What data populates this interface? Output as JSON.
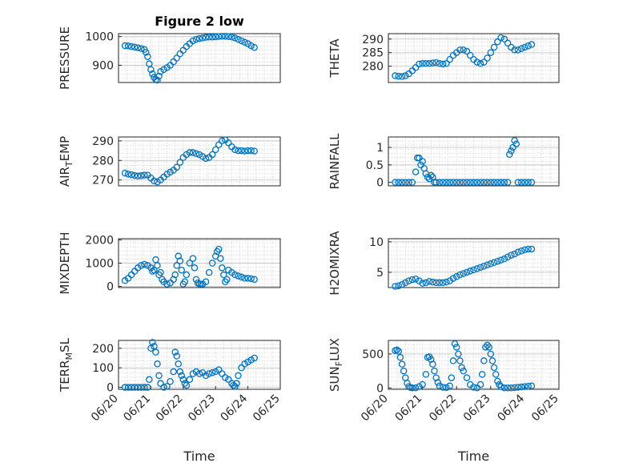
{
  "chart_data": [
    {
      "type": "scatter",
      "title": "Figure 2 low",
      "ylabel": "PRESSURE",
      "xlabel": "",
      "ylim": [
        840,
        1010
      ],
      "yticks": [
        900,
        1000
      ],
      "xlim": [
        0,
        5
      ],
      "xticks": [],
      "x": [
        0.2,
        0.3,
        0.4,
        0.5,
        0.6,
        0.7,
        0.8,
        0.85,
        0.9,
        0.95,
        1.0,
        1.05,
        1.1,
        1.15,
        1.2,
        1.25,
        1.3,
        1.4,
        1.5,
        1.6,
        1.7,
        1.8,
        1.9,
        2.0,
        2.1,
        2.2,
        2.3,
        2.4,
        2.5,
        2.6,
        2.7,
        2.8,
        2.9,
        3.0,
        3.1,
        3.2,
        3.3,
        3.4,
        3.5,
        3.6,
        3.7,
        3.8,
        3.9,
        4.0,
        4.1,
        4.2
      ],
      "y": [
        968,
        967,
        965,
        963,
        961,
        958,
        955,
        945,
        930,
        905,
        885,
        870,
        858,
        850,
        848,
        862,
        878,
        885,
        892,
        900,
        912,
        925,
        940,
        952,
        965,
        975,
        985,
        990,
        993,
        995,
        997,
        998,
        998,
        999,
        1000,
        1001,
        1001,
        1000,
        998,
        995,
        990,
        985,
        980,
        975,
        968,
        962
      ]
    },
    {
      "type": "scatter",
      "title": "",
      "ylabel": "THETA",
      "xlabel": "",
      "ylim": [
        274,
        292
      ],
      "yticks": [
        280,
        285,
        290
      ],
      "xlim": [
        0,
        5
      ],
      "xticks": [],
      "x": [
        0.2,
        0.3,
        0.4,
        0.5,
        0.6,
        0.7,
        0.8,
        0.9,
        1.0,
        1.1,
        1.2,
        1.3,
        1.4,
        1.5,
        1.6,
        1.7,
        1.8,
        1.9,
        2.0,
        2.1,
        2.2,
        2.3,
        2.4,
        2.5,
        2.6,
        2.7,
        2.8,
        2.9,
        3.0,
        3.1,
        3.2,
        3.3,
        3.4,
        3.5,
        3.6,
        3.7,
        3.8,
        3.9,
        4.0,
        4.1,
        4.2
      ],
      "y": [
        276.5,
        276.3,
        276.2,
        276.5,
        277.2,
        278.3,
        279.5,
        280.8,
        281.0,
        281.0,
        281.0,
        281.2,
        281.3,
        281.0,
        280.8,
        281.0,
        282.5,
        284.0,
        285.0,
        286.0,
        286.0,
        285.5,
        284.0,
        282.5,
        281.5,
        281.0,
        281.5,
        283.0,
        285.0,
        287.0,
        289.0,
        290.5,
        290.0,
        288.5,
        287.0,
        286.0,
        286.0,
        286.5,
        287.0,
        287.5,
        288.0
      ]
    },
    {
      "type": "scatter",
      "title": "",
      "ylabel": "AIR_TEMP",
      "xlabel": "",
      "ylim": [
        267,
        292
      ],
      "yticks": [
        270,
        280,
        290
      ],
      "xlim": [
        0,
        5
      ],
      "xticks": [],
      "x": [
        0.2,
        0.3,
        0.4,
        0.5,
        0.6,
        0.7,
        0.8,
        0.9,
        1.0,
        1.1,
        1.2,
        1.3,
        1.4,
        1.5,
        1.6,
        1.7,
        1.8,
        1.9,
        2.0,
        2.1,
        2.2,
        2.3,
        2.4,
        2.5,
        2.6,
        2.7,
        2.8,
        2.9,
        3.0,
        3.1,
        3.2,
        3.3,
        3.4,
        3.5,
        3.6,
        3.7,
        3.8,
        3.9,
        4.0,
        4.1,
        4.2
      ],
      "y": [
        273.5,
        273.0,
        272.7,
        272.3,
        272.0,
        272.2,
        272.5,
        272.5,
        271.0,
        269.5,
        269.0,
        270.0,
        271.5,
        273.0,
        274.0,
        275.0,
        276.5,
        279.0,
        281.5,
        283.0,
        284.0,
        284.0,
        283.5,
        283.0,
        282.0,
        281.0,
        281.5,
        283.0,
        285.5,
        288.0,
        290.0,
        290.5,
        289.0,
        287.0,
        285.5,
        285.0,
        285.0,
        284.8,
        285.0,
        285.0,
        284.8
      ]
    },
    {
      "type": "scatter",
      "title": "",
      "ylabel": "RAINFALL",
      "xlabel": "",
      "ylim": [
        -0.1,
        1.3
      ],
      "yticks": [
        0,
        0.5,
        1
      ],
      "xlim": [
        0,
        5
      ],
      "xticks": [],
      "x": [
        0.2,
        0.3,
        0.4,
        0.5,
        0.6,
        0.7,
        0.8,
        0.85,
        0.9,
        0.95,
        1.0,
        1.05,
        1.1,
        1.15,
        1.2,
        1.25,
        1.3,
        1.35,
        1.4,
        1.5,
        1.6,
        1.7,
        1.8,
        1.9,
        2.0,
        2.1,
        2.2,
        2.3,
        2.4,
        2.5,
        2.6,
        2.7,
        2.8,
        2.9,
        3.0,
        3.1,
        3.2,
        3.3,
        3.4,
        3.5,
        3.55,
        3.6,
        3.65,
        3.7,
        3.75,
        3.8,
        3.9,
        4.0,
        4.1,
        4.2
      ],
      "y": [
        0,
        0,
        0,
        0,
        0,
        0,
        0.3,
        0.7,
        0.7,
        0.5,
        0.6,
        0.4,
        0.25,
        0.15,
        0.1,
        0.2,
        0.15,
        0,
        0,
        0,
        0,
        0,
        0,
        0,
        0,
        0,
        0,
        0,
        0,
        0,
        0,
        0,
        0,
        0,
        0,
        0,
        0,
        0,
        0,
        0,
        0.8,
        0.9,
        1.0,
        1.2,
        1.1,
        0,
        0,
        0,
        0,
        0
      ]
    },
    {
      "type": "scatter",
      "title": "",
      "ylabel": "MIXDEPTH",
      "xlabel": "",
      "ylim": [
        -50,
        2050
      ],
      "yticks": [
        0,
        1000,
        2000
      ],
      "xlim": [
        0,
        5
      ],
      "xticks": [],
      "x": [
        0.2,
        0.3,
        0.4,
        0.5,
        0.6,
        0.7,
        0.8,
        0.9,
        1.0,
        1.05,
        1.1,
        1.15,
        1.2,
        1.25,
        1.3,
        1.35,
        1.4,
        1.5,
        1.6,
        1.7,
        1.75,
        1.8,
        1.85,
        1.9,
        1.95,
        2.0,
        2.05,
        2.1,
        2.2,
        2.3,
        2.35,
        2.4,
        2.45,
        2.5,
        2.55,
        2.6,
        2.7,
        2.8,
        2.9,
        3.0,
        3.05,
        3.1,
        3.15,
        3.2,
        3.25,
        3.3,
        3.35,
        3.4,
        3.5,
        3.6,
        3.7,
        3.8,
        3.9,
        4.0,
        4.1,
        4.2
      ],
      "y": [
        250,
        350,
        500,
        650,
        800,
        900,
        950,
        900,
        800,
        650,
        700,
        1150,
        900,
        500,
        600,
        300,
        200,
        100,
        150,
        300,
        500,
        900,
        1300,
        1100,
        700,
        100,
        200,
        500,
        1000,
        1200,
        800,
        300,
        150,
        100,
        100,
        100,
        200,
        600,
        1000,
        1300,
        1500,
        1600,
        1200,
        800,
        500,
        200,
        300,
        700,
        600,
        500,
        450,
        400,
        350,
        350,
        330,
        300
      ]
    },
    {
      "type": "scatter",
      "title": "",
      "ylabel": "H2OMIXRA",
      "xlabel": "",
      "ylim": [
        2.5,
        10.5
      ],
      "yticks": [
        5,
        10
      ],
      "xlim": [
        0,
        5
      ],
      "xticks": [],
      "x": [
        0.2,
        0.3,
        0.4,
        0.5,
        0.6,
        0.7,
        0.8,
        0.9,
        1.0,
        1.1,
        1.2,
        1.3,
        1.4,
        1.5,
        1.6,
        1.7,
        1.8,
        1.9,
        2.0,
        2.1,
        2.2,
        2.3,
        2.4,
        2.5,
        2.6,
        2.7,
        2.8,
        2.9,
        3.0,
        3.1,
        3.2,
        3.3,
        3.4,
        3.5,
        3.6,
        3.7,
        3.8,
        3.9,
        4.0,
        4.1,
        4.2
      ],
      "y": [
        2.7,
        2.8,
        3.0,
        3.3,
        3.6,
        3.8,
        3.9,
        3.6,
        3.2,
        3.3,
        3.5,
        3.4,
        3.3,
        3.3,
        3.3,
        3.4,
        3.6,
        4.0,
        4.3,
        4.6,
        4.8,
        5.0,
        5.2,
        5.4,
        5.6,
        5.8,
        6.0,
        6.2,
        6.4,
        6.6,
        6.8,
        7.0,
        7.2,
        7.5,
        7.8,
        8.0,
        8.3,
        8.5,
        8.7,
        8.8,
        8.8
      ]
    },
    {
      "type": "scatter",
      "title": "",
      "ylabel": "TERR_MSL",
      "xlabel": "Time",
      "ylim": [
        -10,
        240
      ],
      "yticks": [
        0,
        100,
        200
      ],
      "xlim": [
        0,
        5
      ],
      "xticks": [
        0,
        1,
        2,
        3,
        4,
        5
      ],
      "xticklabels": [
        "06/20",
        "06/21",
        "06/22",
        "06/23",
        "06/24",
        "06/25"
      ],
      "x": [
        0.2,
        0.3,
        0.4,
        0.5,
        0.6,
        0.7,
        0.8,
        0.9,
        0.95,
        1.0,
        1.05,
        1.1,
        1.15,
        1.2,
        1.25,
        1.3,
        1.4,
        1.5,
        1.6,
        1.7,
        1.75,
        1.8,
        1.85,
        1.9,
        1.95,
        2.0,
        2.05,
        2.1,
        2.2,
        2.3,
        2.4,
        2.5,
        2.6,
        2.7,
        2.8,
        2.9,
        3.0,
        3.1,
        3.2,
        3.3,
        3.4,
        3.5,
        3.55,
        3.6,
        3.65,
        3.7,
        3.8,
        3.9,
        4.0,
        4.1,
        4.2
      ],
      "y": [
        0,
        0,
        0,
        0,
        0,
        0,
        0,
        0,
        40,
        200,
        230,
        210,
        180,
        120,
        60,
        20,
        0,
        5,
        30,
        80,
        180,
        160,
        120,
        80,
        60,
        40,
        20,
        10,
        40,
        70,
        80,
        70,
        75,
        60,
        70,
        75,
        80,
        90,
        70,
        50,
        40,
        20,
        10,
        5,
        20,
        60,
        100,
        120,
        130,
        140,
        150
      ]
    },
    {
      "type": "scatter",
      "title": "",
      "ylabel": "SUN_FLUX",
      "xlabel": "Time",
      "ylim": [
        -20,
        700
      ],
      "yticks": [
        0,
        500
      ],
      "xlim": [
        0,
        5
      ],
      "xticks": [
        0,
        1,
        2,
        3,
        4,
        5
      ],
      "xticklabels": [
        "06/20",
        "06/21",
        "06/22",
        "06/23",
        "06/24",
        "06/25"
      ],
      "x": [
        0.2,
        0.25,
        0.3,
        0.35,
        0.4,
        0.45,
        0.5,
        0.55,
        0.6,
        0.65,
        0.7,
        0.8,
        0.9,
        1.0,
        1.1,
        1.15,
        1.2,
        1.25,
        1.3,
        1.35,
        1.4,
        1.45,
        1.5,
        1.6,
        1.7,
        1.8,
        1.85,
        1.9,
        1.95,
        2.0,
        2.05,
        2.1,
        2.15,
        2.2,
        2.3,
        2.4,
        2.5,
        2.6,
        2.7,
        2.75,
        2.8,
        2.85,
        2.9,
        2.95,
        3.0,
        3.05,
        3.1,
        3.15,
        3.2,
        3.25,
        3.3,
        3.4,
        3.5,
        3.6,
        3.7,
        3.8,
        3.9,
        4.0,
        4.1,
        4.2
      ],
      "y": [
        550,
        560,
        540,
        450,
        350,
        250,
        150,
        70,
        20,
        5,
        0,
        0,
        20,
        50,
        200,
        450,
        460,
        420,
        350,
        250,
        150,
        80,
        30,
        10,
        5,
        30,
        150,
        400,
        650,
        600,
        500,
        400,
        300,
        250,
        150,
        50,
        10,
        0,
        50,
        200,
        400,
        600,
        630,
        600,
        500,
        400,
        300,
        200,
        100,
        50,
        20,
        0,
        0,
        0,
        5,
        10,
        15,
        20,
        25,
        30
      ]
    }
  ]
}
